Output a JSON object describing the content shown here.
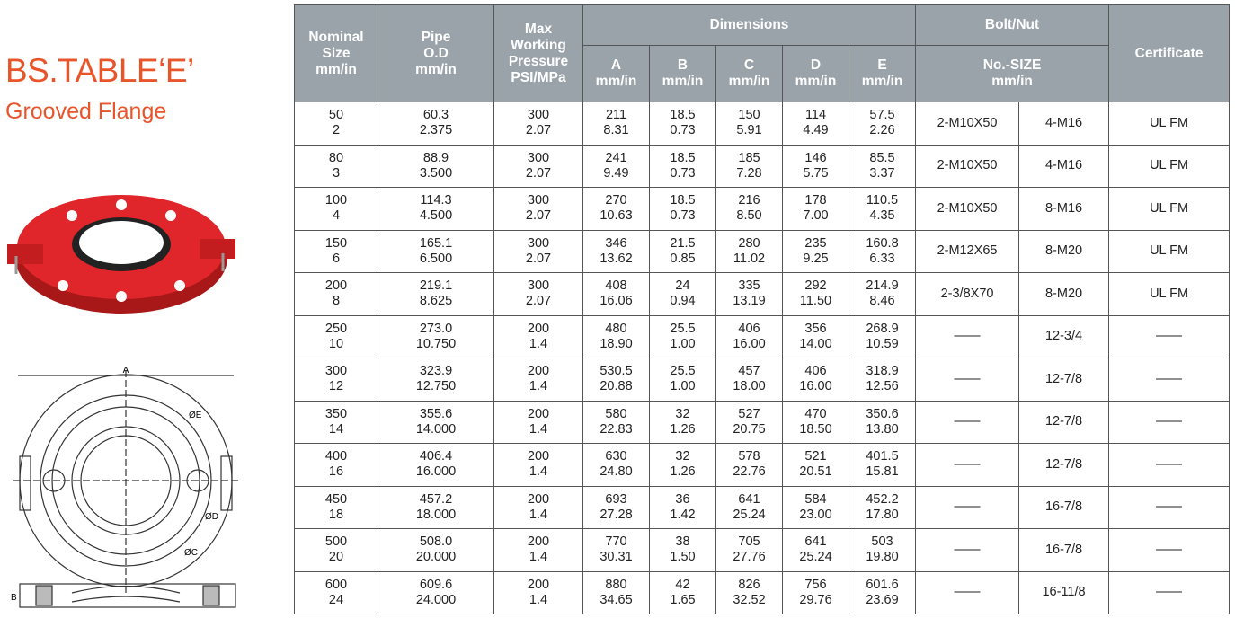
{
  "header": {
    "title": "BS.TABLE‘E’",
    "subtitle": "Grooved Flange"
  },
  "drawing": {
    "labels": [
      "A",
      "ØE",
      "ØD",
      "ØC",
      "B"
    ]
  },
  "table": {
    "head": {
      "nominal": [
        "Nominal",
        "Size",
        "mm/in"
      ],
      "pipe": [
        "Pipe",
        "O.D",
        "mm/in"
      ],
      "pressure": [
        "Max",
        "Working",
        "Pressure",
        "PSI/MPa"
      ],
      "dimensions": "Dimensions",
      "bolt": "Bolt/Nut",
      "certificate": "Certificate",
      "dims": [
        [
          "A",
          "mm/in"
        ],
        [
          "B",
          "mm/in"
        ],
        [
          "C",
          "mm/in"
        ],
        [
          "D",
          "mm/in"
        ],
        [
          "E",
          "mm/in"
        ]
      ],
      "boltsize": [
        "No.-SIZE",
        "mm/in"
      ]
    },
    "rows": [
      [
        [
          "50",
          "2"
        ],
        [
          "60.3",
          "2.375"
        ],
        [
          "300",
          "2.07"
        ],
        [
          "211",
          "8.31"
        ],
        [
          "18.5",
          "0.73"
        ],
        [
          "150",
          "5.91"
        ],
        [
          "114",
          "4.49"
        ],
        [
          "57.5",
          "2.26"
        ],
        "2-M10X50",
        "4-M16",
        "UL FM"
      ],
      [
        [
          "80",
          "3"
        ],
        [
          "88.9",
          "3.500"
        ],
        [
          "300",
          "2.07"
        ],
        [
          "241",
          "9.49"
        ],
        [
          "18.5",
          "0.73"
        ],
        [
          "185",
          "7.28"
        ],
        [
          "146",
          "5.75"
        ],
        [
          "85.5",
          "3.37"
        ],
        "2-M10X50",
        "4-M16",
        "UL FM"
      ],
      [
        [
          "100",
          "4"
        ],
        [
          "114.3",
          "4.500"
        ],
        [
          "300",
          "2.07"
        ],
        [
          "270",
          "10.63"
        ],
        [
          "18.5",
          "0.73"
        ],
        [
          "216",
          "8.50"
        ],
        [
          "178",
          "7.00"
        ],
        [
          "110.5",
          "4.35"
        ],
        "2-M10X50",
        "8-M16",
        "UL FM"
      ],
      [
        [
          "150",
          "6"
        ],
        [
          "165.1",
          "6.500"
        ],
        [
          "300",
          "2.07"
        ],
        [
          "346",
          "13.62"
        ],
        [
          "21.5",
          "0.85"
        ],
        [
          "280",
          "11.02"
        ],
        [
          "235",
          "9.25"
        ],
        [
          "160.8",
          "6.33"
        ],
        "2-M12X65",
        "8-M20",
        "UL FM"
      ],
      [
        [
          "200",
          "8"
        ],
        [
          "219.1",
          "8.625"
        ],
        [
          "300",
          "2.07"
        ],
        [
          "408",
          "16.06"
        ],
        [
          "24",
          "0.94"
        ],
        [
          "335",
          "13.19"
        ],
        [
          "292",
          "11.50"
        ],
        [
          "214.9",
          "8.46"
        ],
        "2-3/8X70",
        "8-M20",
        "UL FM"
      ],
      [
        [
          "250",
          "10"
        ],
        [
          "273.0",
          "10.750"
        ],
        [
          "200",
          "1.4"
        ],
        [
          "480",
          "18.90"
        ],
        [
          "25.5",
          "1.00"
        ],
        [
          "406",
          "16.00"
        ],
        [
          "356",
          "14.00"
        ],
        [
          "268.9",
          "10.59"
        ],
        "——",
        "12-3/4",
        "——"
      ],
      [
        [
          "300",
          "12"
        ],
        [
          "323.9",
          "12.750"
        ],
        [
          "200",
          "1.4"
        ],
        [
          "530.5",
          "20.88"
        ],
        [
          "25.5",
          "1.00"
        ],
        [
          "457",
          "18.00"
        ],
        [
          "406",
          "16.00"
        ],
        [
          "318.9",
          "12.56"
        ],
        "——",
        "12-7/8",
        "——"
      ],
      [
        [
          "350",
          "14"
        ],
        [
          "355.6",
          "14.000"
        ],
        [
          "200",
          "1.4"
        ],
        [
          "580",
          "22.83"
        ],
        [
          "32",
          "1.26"
        ],
        [
          "527",
          "20.75"
        ],
        [
          "470",
          "18.50"
        ],
        [
          "350.6",
          "13.80"
        ],
        "——",
        "12-7/8",
        "——"
      ],
      [
        [
          "400",
          "16"
        ],
        [
          "406.4",
          "16.000"
        ],
        [
          "200",
          "1.4"
        ],
        [
          "630",
          "24.80"
        ],
        [
          "32",
          "1.26"
        ],
        [
          "578",
          "22.76"
        ],
        [
          "521",
          "20.51"
        ],
        [
          "401.5",
          "15.81"
        ],
        "——",
        "12-7/8",
        "——"
      ],
      [
        [
          "450",
          "18"
        ],
        [
          "457.2",
          "18.000"
        ],
        [
          "200",
          "1.4"
        ],
        [
          "693",
          "27.28"
        ],
        [
          "36",
          "1.42"
        ],
        [
          "641",
          "25.24"
        ],
        [
          "584",
          "23.00"
        ],
        [
          "452.2",
          "17.80"
        ],
        "——",
        "16-7/8",
        "——"
      ],
      [
        [
          "500",
          "20"
        ],
        [
          "508.0",
          "20.000"
        ],
        [
          "200",
          "1.4"
        ],
        [
          "770",
          "30.31"
        ],
        [
          "38",
          "1.50"
        ],
        [
          "705",
          "27.76"
        ],
        [
          "641",
          "25.24"
        ],
        [
          "503",
          "19.80"
        ],
        "——",
        "16-7/8",
        "——"
      ],
      [
        [
          "600",
          "24"
        ],
        [
          "609.6",
          "24.000"
        ],
        [
          "200",
          "1.4"
        ],
        [
          "880",
          "34.65"
        ],
        [
          "42",
          "1.65"
        ],
        [
          "826",
          "32.52"
        ],
        [
          "756",
          "29.76"
        ],
        [
          "601.6",
          "23.69"
        ],
        "——",
        "16-11/8",
        "——"
      ]
    ]
  }
}
